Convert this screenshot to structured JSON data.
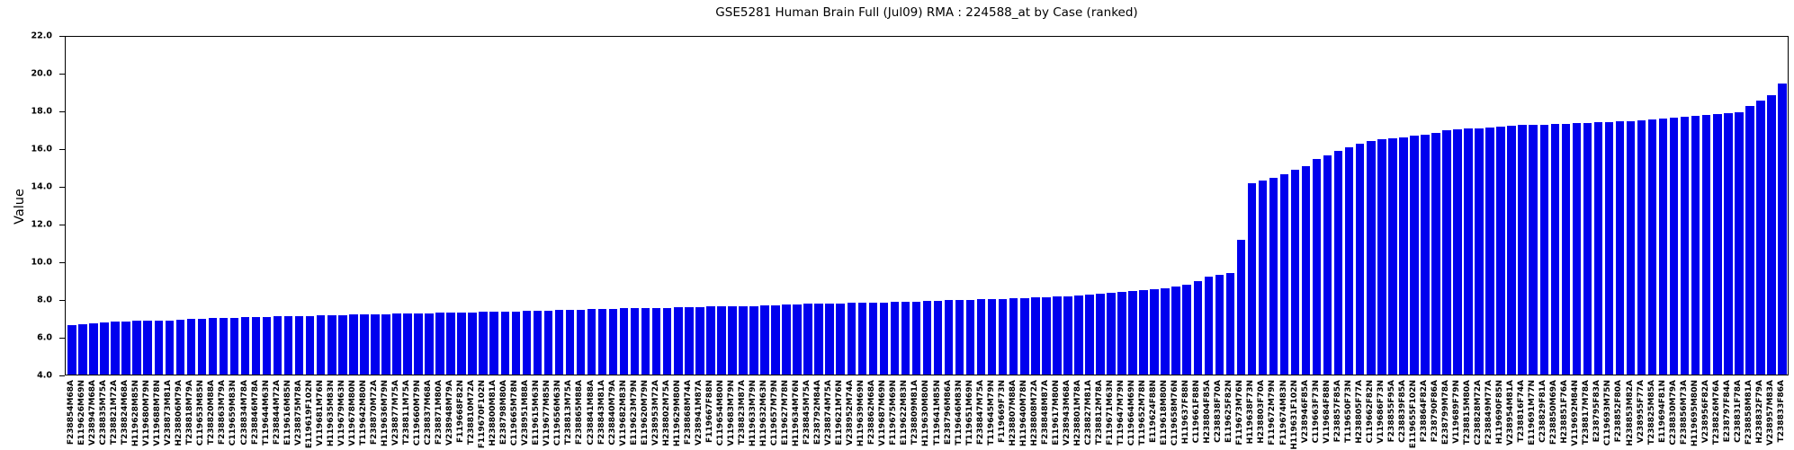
{
  "chart_data": {
    "type": "bar",
    "title": "GSE5281 Human Brain Full (Jul09) RMA : 224588_at by Case (ranked)",
    "xlabel": "",
    "ylabel": "Value",
    "ylim": [
      4.0,
      22.0
    ],
    "yticks": [
      "22.0",
      "20.0",
      "18.0",
      "16.0",
      "14.0",
      "12.0",
      "10.0",
      "8.0",
      "6.0",
      "4.0"
    ],
    "grid": false,
    "legend": "none",
    "bar_color": "#0000ee",
    "axis_color": "#000000",
    "categories": [
      "F238854M68A",
      "E119626M69N",
      "V238947M68A",
      "C238835M75A",
      "T238821M72A",
      "T238824M68A",
      "H119628M85N",
      "V119680M79N",
      "V119688M78N",
      "V238873M81A",
      "H238806M79A",
      "T238818M79A",
      "C119653M85N",
      "T238820M88A",
      "F238863M79A",
      "C119659M83N",
      "C238834M78A",
      "F238846M78A",
      "T119644M63N",
      "F238844M72A",
      "E119616M85N",
      "V238875M78A",
      "E119619F102N",
      "V119681M76N",
      "H119635M83N",
      "V119679M63N",
      "V119678M80N",
      "T119642M80N",
      "F238870M72A",
      "H119636M79N",
      "V238877M75A",
      "T238811M75A",
      "C119660M79N",
      "C238837M68A",
      "F238871M80A",
      "V238948M79A",
      "F119668F82N",
      "T238810M72A",
      "F119670F102N",
      "H238800M81A",
      "E238798M80A",
      "C119665M78N",
      "V238951M88A",
      "E119615M63N",
      "V119677M85N",
      "C119656M63N",
      "T238813M75A",
      "F238865M88A",
      "C238841M88A",
      "F238843M81A",
      "C238840M79A",
      "V119682M83N",
      "E119623M79N",
      "E119620M79N",
      "V238953M72A",
      "H238802M75A",
      "H119629M80N",
      "F238868M74A",
      "V238941M87A",
      "F119667F88N",
      "C119654M80N",
      "V119683M79N",
      "T238823M87A",
      "H119633M79N",
      "H119632M63N",
      "C119657M79N",
      "E119627M78N",
      "H119634M76N",
      "F238845M75A",
      "E238792M84A",
      "V238874M75A",
      "E119621M76N",
      "V238952M74A",
      "H119639M69N",
      "F238862M68A",
      "V119687M69N",
      "F119675M69N",
      "E119622M83N",
      "T238809M81A",
      "H119630M80N",
      "T119641M85N",
      "E238796M86A",
      "T119646M83N",
      "T119651M69N",
      "F238847M75A",
      "T119645M79N",
      "F119669F73N",
      "H238807M88A",
      "H119640M78N",
      "H238808M72A",
      "F238848M87A",
      "E119617M80N",
      "V238943M68A",
      "H238801M78A",
      "C238827M81A",
      "T238812M78A",
      "F119671M63N",
      "T119647M79N",
      "C119664M69N",
      "T119652M78N",
      "E119624F88N",
      "E119618M80N",
      "C119658M76N",
      "H119637F88N",
      "C119661F88N",
      "H238804F85A",
      "C238838F70A",
      "E119625F82N",
      "F119673M76N",
      "H119638F73N",
      "H238803F70A",
      "F119672M79N",
      "F119674M83N",
      "H119631F102N",
      "V238946F85A",
      "C119663F73N",
      "V119684F88N",
      "F238857F85A",
      "T119650F73N",
      "H238805F77A",
      "C119662F82N",
      "V119686F73N",
      "F238855F95A",
      "C238839F85A",
      "E119655F102N",
      "F238864F82A",
      "F238790F86A",
      "E238799M78A",
      "V119689F79N",
      "T238815M80A",
      "C238828M72A",
      "F238849M77A",
      "H119690F85N",
      "V238954M81A",
      "T238816F74A",
      "E119691M77N",
      "C238829F81A",
      "F238850M69A",
      "H238851F76A",
      "V119692M84N",
      "T238817M78A",
      "E238795F83A",
      "C119693M75N",
      "F238852F80A",
      "H238853M82A",
      "V238955F77A",
      "T238825M85A",
      "E119694F81N",
      "C238830M79A",
      "F238856M73A",
      "H119695M80N",
      "V238956F82A",
      "T238826M76A",
      "E238797F84A",
      "C238831F78A",
      "F238858M81A",
      "H238832F79A",
      "V238957M83A",
      "T238833F86A"
    ],
    "values": [
      6.65,
      6.7,
      6.74,
      6.78,
      6.82,
      6.84,
      6.85,
      6.86,
      6.88,
      6.89,
      6.9,
      6.95,
      6.97,
      7.0,
      7.02,
      7.04,
      7.05,
      7.06,
      7.08,
      7.09,
      7.1,
      7.12,
      7.13,
      7.15,
      7.16,
      7.18,
      7.19,
      7.2,
      7.21,
      7.22,
      7.24,
      7.25,
      7.26,
      7.28,
      7.29,
      7.3,
      7.31,
      7.32,
      7.33,
      7.34,
      7.35,
      7.36,
      7.38,
      7.4,
      7.42,
      7.44,
      7.45,
      7.46,
      7.48,
      7.5,
      7.51,
      7.52,
      7.53,
      7.54,
      7.55,
      7.56,
      7.58,
      7.6,
      7.61,
      7.62,
      7.63,
      7.64,
      7.65,
      7.66,
      7.68,
      7.7,
      7.72,
      7.74,
      7.76,
      7.78,
      7.79,
      7.8,
      7.81,
      7.82,
      7.83,
      7.84,
      7.86,
      7.88,
      7.9,
      7.92,
      7.94,
      7.96,
      7.97,
      7.98,
      8.0,
      8.02,
      8.04,
      8.06,
      8.08,
      8.1,
      8.12,
      8.15,
      8.18,
      8.22,
      8.26,
      8.3,
      8.35,
      8.4,
      8.45,
      8.5,
      8.55,
      8.6,
      8.7,
      8.8,
      9.0,
      9.2,
      9.3,
      9.4,
      11.2,
      14.2,
      14.35,
      14.5,
      14.7,
      14.9,
      15.1,
      15.5,
      15.7,
      15.9,
      16.1,
      16.3,
      16.45,
      16.52,
      16.6,
      16.66,
      16.72,
      16.8,
      16.87,
      17.0,
      17.05,
      17.1,
      17.1,
      17.15,
      17.2,
      17.25,
      17.3,
      17.3,
      17.3,
      17.35,
      17.35,
      17.4,
      17.4,
      17.45,
      17.45,
      17.5,
      17.5,
      17.55,
      17.6,
      17.65,
      17.7,
      17.75,
      17.8,
      17.85,
      17.9,
      17.95,
      18.0,
      18.3,
      18.6,
      18.9,
      19.5
    ]
  }
}
